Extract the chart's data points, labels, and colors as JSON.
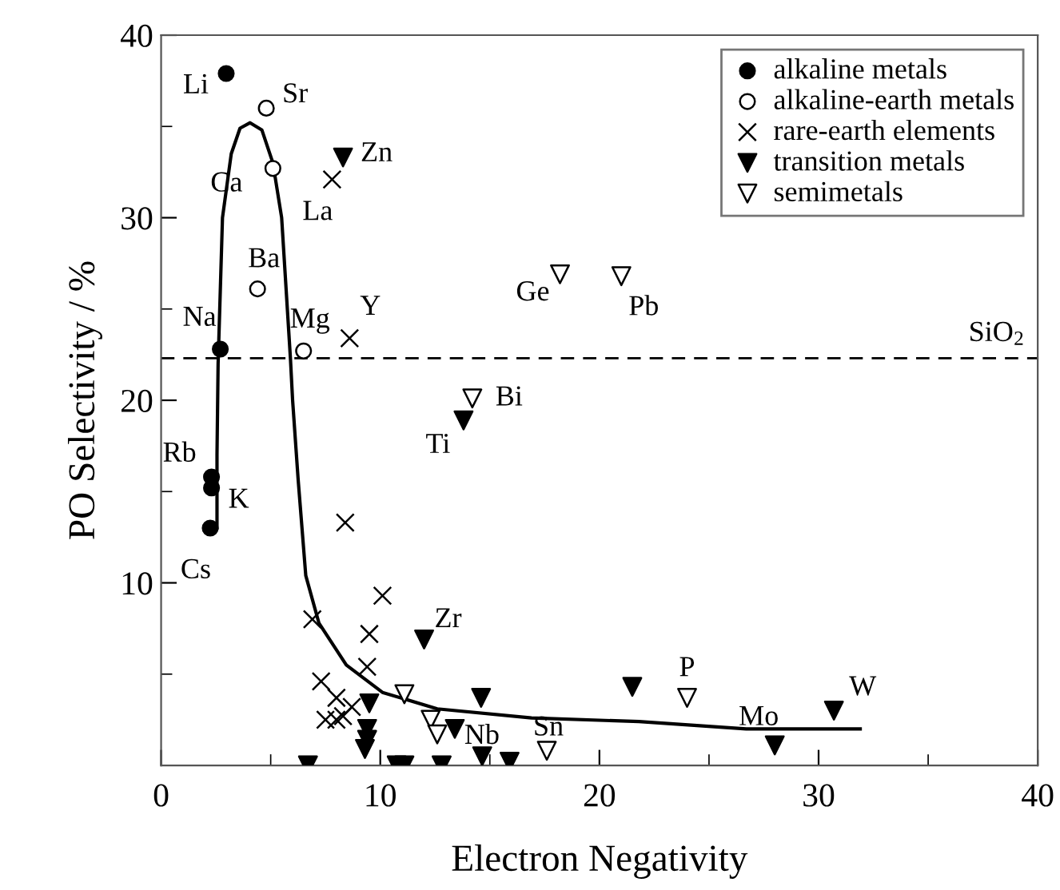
{
  "chart_data": {
    "type": "scatter",
    "xlabel": "Electron Negativity",
    "ylabel": "PO Selectivity / %",
    "xlim": [
      0,
      40
    ],
    "ylim": [
      0,
      40
    ],
    "xticks": [
      0,
      {
        "value": 5,
        "label": null
      },
      10,
      {
        "value": 15,
        "label": null
      },
      20,
      {
        "value": 25,
        "label": null
      },
      30,
      {
        "value": 35,
        "label": null
      },
      40
    ],
    "yticks": [
      {
        "value": 0,
        "label": null
      },
      {
        "value": 5,
        "label": null
      },
      10,
      {
        "value": 15,
        "label": null
      },
      20,
      {
        "value": 25,
        "label": null
      },
      30,
      {
        "value": 35,
        "label": null
      },
      40
    ],
    "grid": false,
    "legend": "top right",
    "series": [
      {
        "name": "alkaline metals",
        "marker": "circle",
        "color": "#000000",
        "x": [
          2.97,
          2.7,
          2.3,
          2.3,
          2.24
        ],
        "values": [
          37.9,
          22.8,
          15.8,
          15.2,
          13.0
        ]
      },
      {
        "name": "alkaline-earth metals",
        "marker": "circle",
        "color": "#ffffff",
        "x": [
          4.8,
          5.1,
          4.4,
          6.5
        ],
        "values": [
          36.0,
          32.7,
          26.1,
          22.7
        ]
      },
      {
        "name": "rare-earth elements",
        "marker": "cross",
        "color": "#000000",
        "x": [
          7.8,
          8.6,
          8.4,
          10.1,
          6.9,
          9.5,
          9.4,
          7.3,
          8.0,
          8.7,
          7.5,
          8.0,
          8.3
        ],
        "values": [
          32.1,
          23.4,
          13.3,
          9.3,
          8.0,
          7.2,
          5.4,
          4.6,
          3.7,
          3.2,
          2.5,
          2.5,
          2.7
        ]
      },
      {
        "name": "transition metals",
        "marker": "triangle",
        "color": "#000000",
        "x": [
          8.3,
          13.8,
          12.0,
          9.5,
          9.4,
          9.4,
          9.3,
          14.6,
          13.4,
          6.7,
          10.75,
          11.1,
          12.8,
          14.65,
          15.9,
          21.5,
          28.0,
          30.7
        ],
        "values": [
          33.3,
          18.9,
          6.9,
          3.4,
          2.0,
          1.4,
          0.9,
          3.7,
          2.0,
          0,
          0,
          0,
          0,
          0.5,
          0.2,
          4.3,
          1.1,
          3.0
        ]
      },
      {
        "name": "semimetals",
        "marker": "triangle",
        "color": "#ffffff",
        "x": [
          18.2,
          21.0,
          14.2,
          11.1,
          12.3,
          12.6,
          17.6,
          24.0
        ],
        "values": [
          26.9,
          26.8,
          20.1,
          3.9,
          2.5,
          1.7,
          0.8,
          3.7
        ]
      },
      {
        "type": "line",
        "marker": "none",
        "line_style": "solid",
        "color": "#000000",
        "x": [
          2.55,
          2.55,
          2.6,
          2.8,
          3.2,
          3.6,
          4.06,
          4.6,
          5.1,
          5.5,
          5.9,
          6.0,
          6.25,
          6.6,
          7.2,
          8.45,
          10.1,
          12.6,
          16.9,
          21.8,
          26.7,
          31.9
        ],
        "values": [
          13,
          17,
          22,
          30,
          33.5,
          34.9,
          35.2,
          34.8,
          33,
          30,
          22.3,
          20,
          15.7,
          10.4,
          7.8,
          5.5,
          4.0,
          3.1,
          2.6,
          2.4,
          2.0,
          2.0
        ]
      }
    ],
    "ref_lines": [
      {
        "axis": "y",
        "value": 22.3,
        "label": "SiO$_{2}$",
        "color": "#000000",
        "line_style": "dashed"
      }
    ],
    "annotations": [
      {
        "text": "Li",
        "x": 2.97,
        "y": 37.9
      },
      {
        "text": "Sr",
        "x": 4.8,
        "y": 36.0
      },
      {
        "text": "Zn",
        "x": 8.3,
        "y": 33.3
      },
      {
        "text": "Ca",
        "x": 5.1,
        "y": 32.7
      },
      {
        "text": "La",
        "x": 7.8,
        "y": 32.1
      },
      {
        "text": "Ba",
        "x": 4.4,
        "y": 26.1
      },
      {
        "text": "Na",
        "x": 2.7,
        "y": 22.8
      },
      {
        "text": "Mg",
        "x": 6.5,
        "y": 22.7
      },
      {
        "text": "Y",
        "x": 8.6,
        "y": 23.4
      },
      {
        "text": "Bi",
        "x": 14.2,
        "y": 20.1
      },
      {
        "text": "Ti",
        "x": 13.8,
        "y": 18.9
      },
      {
        "text": "Rb",
        "x": 2.3,
        "y": 15.8
      },
      {
        "text": "K",
        "x": 2.3,
        "y": 15.2
      },
      {
        "text": "Cs",
        "x": 2.24,
        "y": 13.0
      },
      {
        "text": "Zr",
        "x": 12.0,
        "y": 6.9
      },
      {
        "text": "Nb",
        "x": 13.4,
        "y": 2.0
      },
      {
        "text": "Sn",
        "x": 17.6,
        "y": 0.8
      },
      {
        "text": "P",
        "x": 24.0,
        "y": 3.7
      },
      {
        "text": "Mo",
        "x": 28.0,
        "y": 1.1
      },
      {
        "text": "W",
        "x": 30.7,
        "y": 3.0
      },
      {
        "text": "Ge",
        "x": 18.2,
        "y": 26.9
      },
      {
        "text": "Pb",
        "x": 21.0,
        "y": 26.8
      }
    ]
  }
}
